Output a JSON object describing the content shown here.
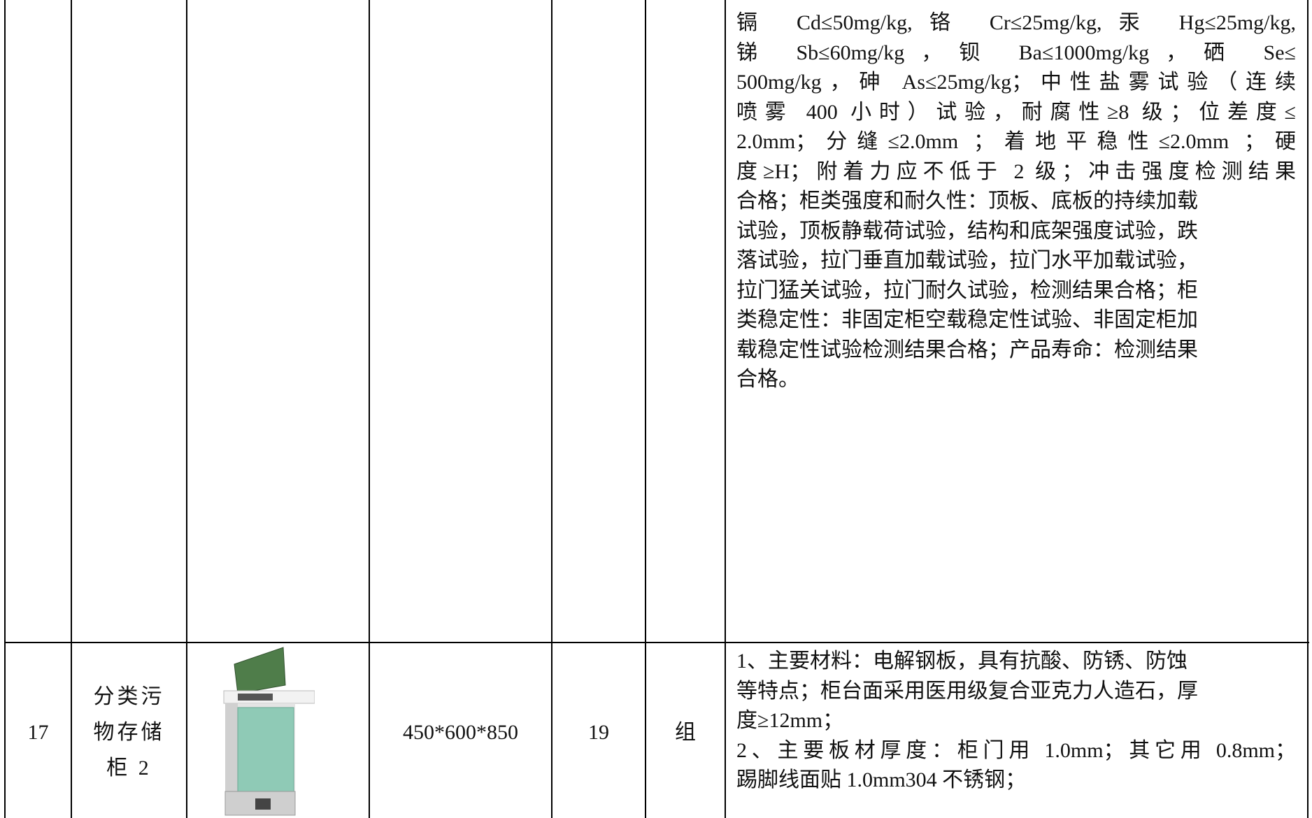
{
  "table": {
    "rows": [
      {
        "number": null,
        "name": [],
        "size": null,
        "quantity": null,
        "unit": null,
        "spec": [
          "镉 Cd≤50mg/kg,铬 Cr≤25mg/kg,汞 Hg≤25mg/kg,",
          "锑 Sb≤60mg/kg，钡 Ba≤1000mg/kg，硒 Se≤",
          "500mg/kg，砷 As≤25mg/kg；中性盐雾试验（连续",
          "喷雾 400 小时）试验，耐腐性≥8 级；位差度≤",
          "2.0mm；分缝≤2.0mm ；着地平稳性≤2.0mm ；硬",
          "度≥H；附着力应不低于 2 级；冲击强度检测结果",
          "合格；柜类强度和耐久性：顶板、底板的持续加载",
          "试验，顶板静载荷试验，结构和底架强度试验，跌",
          "落试验，拉门垂直加载试验，拉门水平加载试验，",
          "拉门猛关试验，拉门耐久试验，检测结果合格；柜",
          "类稳定性：非固定柜空载稳定性试验、非固定柜加",
          "载稳定性试验检测结果合格；产品寿命：检测结果",
          "合格。"
        ]
      },
      {
        "number": "17",
        "name": [
          "分类污",
          "物存储",
          "柜 2"
        ],
        "size": "450*600*850",
        "quantity": "19",
        "unit": "组",
        "spec": [
          "1、主要材料：电解钢板，具有抗酸、防锈、防蚀",
          "等特点；柜台面采用医用级复合亚克力人造石，厚",
          "度≥12mm；",
          "2、主要板材厚度：柜门用 1.0mm；其它用 0.8mm；",
          "踢脚线面贴 1.0mm304 不锈钢；"
        ]
      }
    ]
  }
}
